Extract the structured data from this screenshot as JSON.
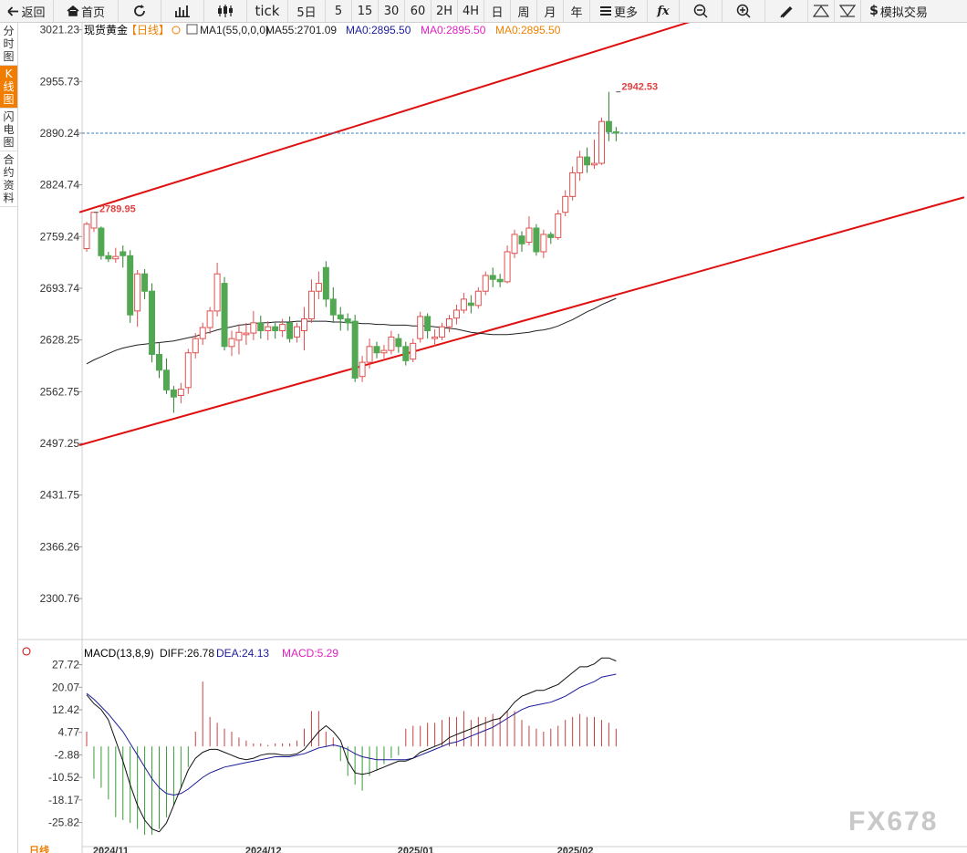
{
  "toolbar": {
    "back": "返回",
    "home": "首页",
    "tick": "tick",
    "periods": [
      "5日",
      "5",
      "15",
      "30",
      "60",
      "2H",
      "4H",
      "日",
      "周",
      "月",
      "年"
    ],
    "more": "更多",
    "fx": "fx",
    "trade": "模拟交易"
  },
  "sidetabs": [
    {
      "label": "分时图",
      "active": false
    },
    {
      "label": "K线图",
      "active": true
    },
    {
      "label": "闪电图",
      "active": false
    },
    {
      "label": "合约资料",
      "active": false
    }
  ],
  "colors": {
    "up": "#e05050",
    "down": "#52a852",
    "trend": "#e01010",
    "ma55": "#222222",
    "dea": "#1c1c9a",
    "diff": "#111111",
    "price_line": "#3b7fc4",
    "accent": "#f07d00"
  },
  "chart_data": [
    {
      "type": "candlestick",
      "title": "现货黄金",
      "title_tag": "【日线】",
      "legend": [
        {
          "text": "MA1(55,0,0,0)",
          "color": "#222222"
        },
        {
          "text": "MA55:2701.09",
          "color": "#222222"
        },
        {
          "text": "MA0:2895.50",
          "color": "#1c1c9a"
        },
        {
          "text": "MA0:2895.50",
          "color": "#e020c0"
        },
        {
          "text": "MA0:2895.50",
          "color": "#f08000"
        }
      ],
      "ylim": [
        2250,
        3030
      ],
      "yticks": [
        3021.23,
        2955.73,
        2890.24,
        2824.74,
        2759.24,
        2693.74,
        2628.25,
        2562.75,
        2497.25,
        2431.75,
        2366.26,
        2300.76
      ],
      "xticks": [
        {
          "label": "2024/11",
          "index": 2
        },
        {
          "label": "2024/12",
          "index": 23
        },
        {
          "label": "2025/01",
          "index": 44
        },
        {
          "label": "2025/02",
          "index": 66
        }
      ],
      "current_price": 2890.2,
      "annotations": [
        {
          "text": "2789.95",
          "index": 1,
          "value": 2789.95
        },
        {
          "text": "2942.53",
          "index": 73,
          "value": 2942.53
        }
      ],
      "trendlines": [
        {
          "from": [
            -1,
            2790
          ],
          "to": [
            88,
            3045
          ]
        },
        {
          "from": [
            -1,
            2495
          ],
          "to": [
            121,
            2809
          ]
        }
      ],
      "candles": [
        [
          2744,
          2775,
          2740,
          2778
        ],
        [
          2770,
          2790,
          2765,
          2790
        ],
        [
          2770,
          2735,
          2730,
          2772
        ],
        [
          2735,
          2731,
          2727,
          2740
        ],
        [
          2731,
          2734,
          2726,
          2745
        ],
        [
          2740,
          2735,
          2720,
          2748
        ],
        [
          2735,
          2660,
          2650,
          2742
        ],
        [
          2665,
          2712,
          2645,
          2717
        ],
        [
          2712,
          2690,
          2680,
          2718
        ],
        [
          2690,
          2610,
          2600,
          2700
        ],
        [
          2610,
          2590,
          2580,
          2625
        ],
        [
          2590,
          2565,
          2560,
          2605
        ],
        [
          2565,
          2556,
          2536,
          2570
        ],
        [
          2558,
          2566,
          2548,
          2574
        ],
        [
          2568,
          2612,
          2560,
          2617
        ],
        [
          2612,
          2630,
          2605,
          2637
        ],
        [
          2630,
          2644,
          2622,
          2650
        ],
        [
          2644,
          2665,
          2636,
          2670
        ],
        [
          2665,
          2712,
          2658,
          2726
        ],
        [
          2700,
          2620,
          2615,
          2708
        ],
        [
          2620,
          2630,
          2608,
          2640
        ],
        [
          2628,
          2638,
          2610,
          2648
        ],
        [
          2635,
          2637,
          2622,
          2650
        ],
        [
          2637,
          2650,
          2628,
          2665
        ],
        [
          2650,
          2640,
          2630,
          2659
        ],
        [
          2640,
          2645,
          2628,
          2652
        ],
        [
          2645,
          2640,
          2630,
          2650
        ],
        [
          2640,
          2648,
          2632,
          2655
        ],
        [
          2650,
          2630,
          2625,
          2658
        ],
        [
          2632,
          2645,
          2625,
          2650
        ],
        [
          2640,
          2655,
          2615,
          2670
        ],
        [
          2655,
          2690,
          2650,
          2705
        ],
        [
          2690,
          2700,
          2680,
          2715
        ],
        [
          2720,
          2680,
          2670,
          2728
        ],
        [
          2680,
          2660,
          2650,
          2695
        ],
        [
          2660,
          2655,
          2640,
          2670
        ],
        [
          2655,
          2650,
          2640,
          2662
        ],
        [
          2652,
          2580,
          2575,
          2660
        ],
        [
          2582,
          2600,
          2575,
          2608
        ],
        [
          2600,
          2620,
          2592,
          2630
        ],
        [
          2620,
          2612,
          2605,
          2626
        ],
        [
          2612,
          2615,
          2605,
          2622
        ],
        [
          2615,
          2632,
          2610,
          2640
        ],
        [
          2630,
          2620,
          2612,
          2636
        ],
        [
          2620,
          2602,
          2596,
          2626
        ],
        [
          2604,
          2624,
          2600,
          2630
        ],
        [
          2630,
          2658,
          2625,
          2664
        ],
        [
          2658,
          2640,
          2630,
          2662
        ],
        [
          2630,
          2632,
          2620,
          2642
        ],
        [
          2632,
          2645,
          2628,
          2650
        ],
        [
          2645,
          2655,
          2638,
          2660
        ],
        [
          2656,
          2666,
          2648,
          2673
        ],
        [
          2666,
          2680,
          2662,
          2688
        ],
        [
          2675,
          2672,
          2662,
          2685
        ],
        [
          2672,
          2690,
          2668,
          2695
        ],
        [
          2690,
          2710,
          2685,
          2715
        ],
        [
          2710,
          2705,
          2695,
          2720
        ],
        [
          2705,
          2702,
          2695,
          2712
        ],
        [
          2702,
          2740,
          2700,
          2748
        ],
        [
          2738,
          2762,
          2732,
          2768
        ],
        [
          2760,
          2750,
          2740,
          2766
        ],
        [
          2752,
          2770,
          2748,
          2785
        ],
        [
          2770,
          2740,
          2735,
          2775
        ],
        [
          2740,
          2762,
          2732,
          2768
        ],
        [
          2762,
          2758,
          2750,
          2765
        ],
        [
          2758,
          2788,
          2755,
          2793
        ],
        [
          2790,
          2810,
          2785,
          2818
        ],
        [
          2810,
          2840,
          2805,
          2848
        ],
        [
          2840,
          2860,
          2830,
          2868
        ],
        [
          2860,
          2850,
          2840,
          2872
        ],
        [
          2850,
          2852,
          2845,
          2882
        ],
        [
          2852,
          2905,
          2850,
          2910
        ],
        [
          2905,
          2892,
          2880,
          2942.53
        ],
        [
          2892,
          2890.2,
          2880,
          2898
        ]
      ],
      "ma55": [
        2598,
        2603,
        2607,
        2611,
        2615,
        2618,
        2620,
        2622,
        2623,
        2624,
        2625,
        2626,
        2627,
        2629,
        2631,
        2633,
        2636,
        2638,
        2641,
        2643,
        2645,
        2647,
        2648,
        2649,
        2650,
        2650,
        2651,
        2651,
        2651,
        2652,
        2652,
        2652,
        2652,
        2652,
        2651,
        2651,
        2650,
        2650,
        2649,
        2649,
        2648,
        2648,
        2647,
        2647,
        2647,
        2646,
        2646,
        2646,
        2645,
        2644,
        2643,
        2642,
        2640,
        2638,
        2637,
        2636,
        2635,
        2635,
        2635,
        2636,
        2637,
        2638,
        2640,
        2641,
        2643,
        2646,
        2650,
        2654,
        2659,
        2664,
        2668,
        2673,
        2677,
        2681
      ]
    },
    {
      "type": "macd",
      "title": "MACD(13,8,9)",
      "legend": [
        {
          "text": "DIFF:26.78",
          "color": "#111111"
        },
        {
          "text": "DEA:24.13",
          "color": "#1c1c9a"
        },
        {
          "text": "MACD:5.29",
          "color": "#e020c0"
        }
      ],
      "ylim": [
        -34,
        31
      ],
      "yticks": [
        27.72,
        20.07,
        12.42,
        4.77,
        -2.88,
        -10.52,
        -18.17,
        -25.82
      ],
      "diff": [
        17.5,
        14.5,
        12.5,
        9,
        2,
        -5,
        -13,
        -20,
        -25,
        -28,
        -29,
        -26,
        -20,
        -14,
        -8,
        -4,
        -2,
        -1,
        -1,
        -2,
        -3,
        -4,
        -4.5,
        -4,
        -3,
        -2.5,
        -2.5,
        -3,
        -3,
        -2.5,
        -1,
        2,
        5,
        7,
        5,
        2,
        -5,
        -9,
        -9.5,
        -9,
        -8,
        -7,
        -6,
        -5,
        -5,
        -4,
        -2,
        -1,
        0,
        1,
        3,
        4,
        5,
        6,
        7,
        8,
        9,
        9.5,
        12,
        15,
        17,
        18,
        19,
        19,
        20,
        21,
        23,
        25,
        27,
        27,
        28,
        30,
        30,
        29
      ],
      "dea": [
        18,
        16,
        13.5,
        11,
        8,
        5,
        1,
        -3,
        -7,
        -11,
        -14,
        -16,
        -16.5,
        -16,
        -14.5,
        -12.5,
        -10.5,
        -9,
        -8,
        -7,
        -6.5,
        -6,
        -5.5,
        -5,
        -4.5,
        -4,
        -3.5,
        -3.5,
        -3.5,
        -3,
        -2.5,
        -1.5,
        -0.5,
        0,
        0.5,
        0,
        -1,
        -2.5,
        -3.5,
        -4,
        -4.5,
        -4.5,
        -4.5,
        -4.5,
        -4.5,
        -4,
        -3,
        -2,
        -1,
        0,
        1,
        1.5,
        2.5,
        3.5,
        4.5,
        5.5,
        6.5,
        8,
        9.5,
        11,
        12.5,
        13.5,
        14,
        14.5,
        15,
        16,
        17,
        18.5,
        20,
        21,
        22,
        23.5,
        24,
        24.5
      ],
      "macd": [
        5,
        -11,
        -14,
        -18,
        -24,
        -25,
        -26,
        -28,
        -30,
        -30,
        -28,
        -24,
        -20,
        -14,
        -7,
        5,
        22,
        10,
        8,
        6,
        5,
        3,
        2,
        1,
        1,
        0.5,
        1,
        1,
        1,
        2,
        6,
        12,
        12,
        5,
        3,
        -5,
        -10,
        -13,
        -15,
        -10,
        -8,
        -6,
        -4,
        -3,
        6,
        7,
        7,
        8,
        8,
        9,
        10,
        10,
        12,
        9,
        10,
        10,
        11,
        10,
        12,
        12,
        9,
        7,
        6,
        5,
        6,
        7,
        9,
        10,
        11,
        10,
        10,
        9,
        8,
        6
      ]
    }
  ],
  "watermark": "FX678",
  "period_label": "日线"
}
